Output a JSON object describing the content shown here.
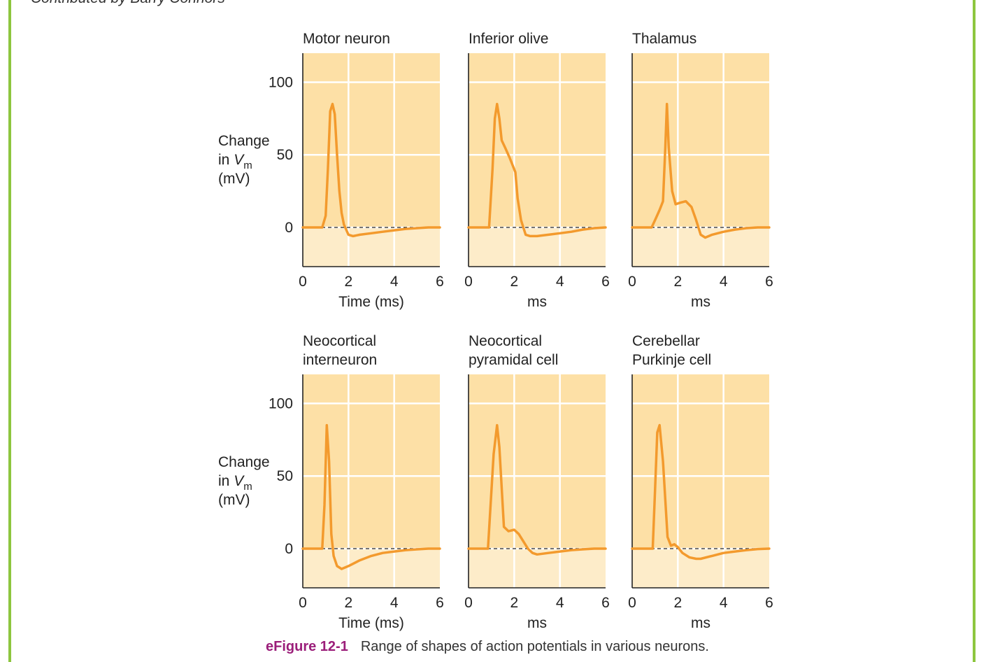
{
  "credit": "Contributed by Barry Connors",
  "caption": {
    "label": "eFigure 12-1",
    "text": "Range of shapes of action potentials in various neurons."
  },
  "colors": {
    "frame": "#8dc63f",
    "plot_above_zero": "#fde0a6",
    "plot_below_zero": "#fdecc9",
    "trace": "#f39a2d",
    "grid": "#ffffff",
    "caption_label": "#9b1e7a"
  },
  "chart_data": [
    {
      "type": "line",
      "title": "Motor neuron",
      "xlabel": "Time (ms)",
      "ylabel": "Change in Vm (mV)",
      "xlim": [
        0,
        6
      ],
      "ylim": [
        -27,
        120
      ],
      "xticks": [
        0,
        2,
        4,
        6
      ],
      "yticks": [
        0,
        50,
        100
      ],
      "baseline": 0,
      "grid": true,
      "x": [
        0,
        0.85,
        1.0,
        1.1,
        1.2,
        1.3,
        1.4,
        1.5,
        1.6,
        1.7,
        1.8,
        2.0,
        2.2,
        2.5,
        3.0,
        3.5,
        4.0,
        4.5,
        5.0,
        5.5,
        6.0
      ],
      "y": [
        0,
        0,
        8,
        40,
        80,
        85,
        78,
        50,
        25,
        10,
        2,
        -5,
        -6,
        -5,
        -4,
        -3,
        -2,
        -1,
        -0.5,
        0,
        0
      ]
    },
    {
      "type": "line",
      "title": "Inferior olive",
      "xlabel": "ms",
      "ylabel": "",
      "xlim": [
        0,
        6
      ],
      "ylim": [
        -27,
        120
      ],
      "xticks": [
        0,
        2,
        4,
        6
      ],
      "yticks": [
        0,
        50,
        100
      ],
      "baseline": 0,
      "grid": true,
      "x": [
        0,
        0.9,
        1.05,
        1.15,
        1.25,
        1.35,
        1.45,
        1.6,
        1.8,
        2.05,
        2.15,
        2.3,
        2.5,
        2.7,
        3.0,
        3.5,
        4.0,
        4.5,
        5.0,
        5.5,
        6.0
      ],
      "y": [
        0,
        0,
        40,
        75,
        85,
        75,
        60,
        55,
        48,
        38,
        20,
        5,
        -5,
        -6,
        -6,
        -5,
        -4,
        -3,
        -1.5,
        -0.5,
        0
      ]
    },
    {
      "type": "line",
      "title": "Thalamus",
      "xlabel": "ms",
      "ylabel": "",
      "xlim": [
        0,
        6
      ],
      "ylim": [
        -27,
        120
      ],
      "xticks": [
        0,
        2,
        4,
        6
      ],
      "yticks": [
        0,
        50,
        100
      ],
      "baseline": 0,
      "grid": true,
      "x": [
        0,
        0.85,
        1.0,
        1.2,
        1.35,
        1.45,
        1.52,
        1.6,
        1.75,
        1.9,
        2.1,
        2.35,
        2.6,
        2.8,
        3.0,
        3.2,
        3.5,
        4.0,
        4.5,
        5.0,
        5.5,
        6.0
      ],
      "y": [
        0,
        0,
        5,
        12,
        18,
        55,
        85,
        55,
        25,
        16,
        17,
        18,
        14,
        5,
        -5,
        -7,
        -5,
        -3,
        -1.5,
        -0.5,
        0,
        0
      ]
    },
    {
      "type": "line",
      "title": "Neocortical interneuron",
      "xlabel": "Time (ms)",
      "ylabel": "Change in Vm (mV)",
      "xlim": [
        0,
        6
      ],
      "ylim": [
        -27,
        120
      ],
      "xticks": [
        0,
        2,
        4,
        6
      ],
      "yticks": [
        0,
        50,
        100
      ],
      "baseline": 0,
      "grid": true,
      "x": [
        0,
        0.85,
        0.95,
        1.05,
        1.15,
        1.25,
        1.35,
        1.5,
        1.7,
        2.0,
        2.5,
        3.0,
        3.5,
        4.0,
        4.5,
        5.0,
        5.5,
        6.0
      ],
      "y": [
        0,
        0,
        30,
        85,
        60,
        10,
        -5,
        -12,
        -14,
        -12,
        -8,
        -5,
        -3,
        -2,
        -1,
        -0.5,
        0,
        0
      ]
    },
    {
      "type": "line",
      "title": "Neocortical pyramidal cell",
      "xlabel": "ms",
      "ylabel": "",
      "xlim": [
        0,
        6
      ],
      "ylim": [
        -27,
        120
      ],
      "xticks": [
        0,
        2,
        4,
        6
      ],
      "yticks": [
        0,
        50,
        100
      ],
      "baseline": 0,
      "grid": true,
      "x": [
        0,
        0.85,
        1.1,
        1.25,
        1.35,
        1.55,
        1.75,
        2.0,
        2.2,
        2.4,
        2.6,
        2.8,
        3.0,
        3.5,
        4.0,
        4.5,
        5.0,
        5.5,
        6.0
      ],
      "y": [
        0,
        0,
        65,
        85,
        70,
        15,
        12,
        13,
        10,
        5,
        0,
        -3,
        -4,
        -3,
        -2,
        -1,
        -0.5,
        0,
        0
      ]
    },
    {
      "type": "line",
      "title": "Cerebellar Purkinje cell",
      "xlabel": "ms",
      "ylabel": "",
      "xlim": [
        0,
        6
      ],
      "ylim": [
        -27,
        120
      ],
      "xticks": [
        0,
        2,
        4,
        6
      ],
      "yticks": [
        0,
        50,
        100
      ],
      "baseline": 0,
      "grid": true,
      "x": [
        0,
        0.9,
        1.0,
        1.1,
        1.2,
        1.35,
        1.55,
        1.7,
        1.85,
        2.0,
        2.2,
        2.5,
        2.8,
        3.0,
        3.5,
        4.0,
        4.5,
        5.0,
        5.5,
        6.0
      ],
      "y": [
        0,
        0,
        40,
        80,
        85,
        60,
        8,
        2,
        3,
        1,
        -3,
        -6,
        -7,
        -7,
        -5,
        -3,
        -2,
        -1,
        -0.3,
        0
      ]
    }
  ]
}
